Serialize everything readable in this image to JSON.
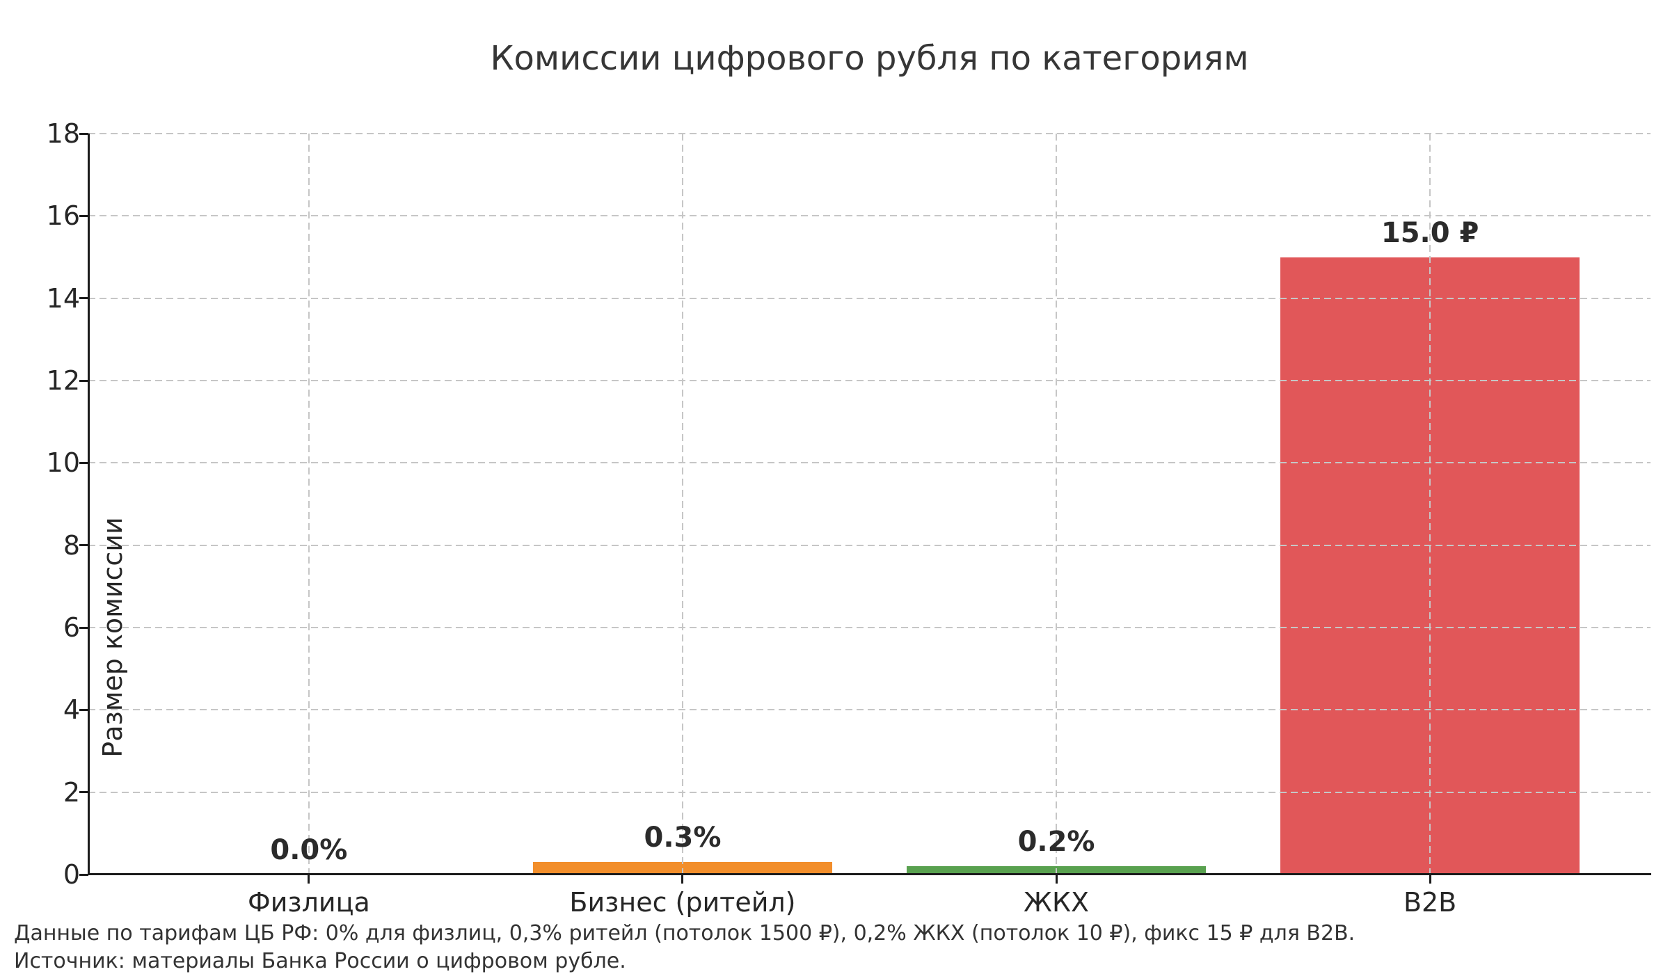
{
  "chart_data": {
    "type": "bar",
    "title": "Комиссии цифрового рубля по категориям",
    "ylabel": "Размер комиссии",
    "xlabel": "",
    "categories": [
      "Физлица",
      "Бизнес (ритейл)",
      "ЖКХ",
      "B2B"
    ],
    "values": [
      0.0,
      0.3,
      0.2,
      15.0
    ],
    "bar_labels": [
      "0.0%",
      "0.3%",
      "0.2%",
      "15.0 ₽"
    ],
    "bar_colors": [
      null,
      "#f28e2b",
      "#59a14f",
      "#e15759"
    ],
    "ylim": [
      0,
      18
    ],
    "yticks": [
      0,
      2,
      4,
      6,
      8,
      10,
      12,
      14,
      16,
      18
    ],
    "grid": {
      "style": "dashed",
      "horizontal": true,
      "vertical": true,
      "drawn_over_bars": true,
      "color": "#c6c6c6"
    },
    "legend": "none",
    "axis_color": "#1c1c1c",
    "text_color": "#262626"
  },
  "footer": {
    "line1": "Данные по тарифам ЦБ РФ: 0% для физлиц, 0,3% ритейл (потолок 1500 ₽), 0,2% ЖКХ (потолок 10 ₽), фикс 15 ₽ для B2B.",
    "line2": "Источник: материалы Банка России о цифровом рубле."
  }
}
